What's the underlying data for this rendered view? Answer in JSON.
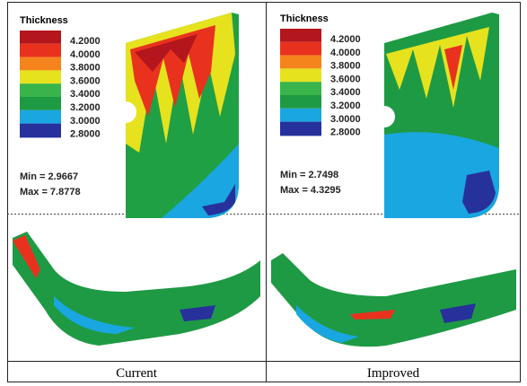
{
  "panels": [
    {
      "legend": {
        "title": "Thickness",
        "labels": [
          "4.2000",
          "4.0000",
          "3.8000",
          "3.6000",
          "3.4000",
          "3.2000",
          "3.0000",
          "2.8000"
        ],
        "colors": [
          "#b3161c",
          "#e8321e",
          "#f5841c",
          "#e6e21e",
          "#38b44a",
          "#1e9a44",
          "#1aa6e0",
          "#26319c"
        ]
      },
      "min": "Min = 2.9667",
      "max": "Max = 7.8778",
      "caption": "Current"
    },
    {
      "legend": {
        "title": "Thickness",
        "labels": [
          "4.2000",
          "4.0000",
          "3.8000",
          "3.6000",
          "3.4000",
          "3.2000",
          "3.0000",
          "2.8000"
        ],
        "colors": [
          "#b3161c",
          "#e8321e",
          "#f5841c",
          "#e6e21e",
          "#38b44a",
          "#1e9a44",
          "#1aa6e0",
          "#26319c"
        ]
      },
      "min": "Min = 2.7498",
      "max": "Max = 4.3295",
      "caption": "Improved"
    }
  ]
}
